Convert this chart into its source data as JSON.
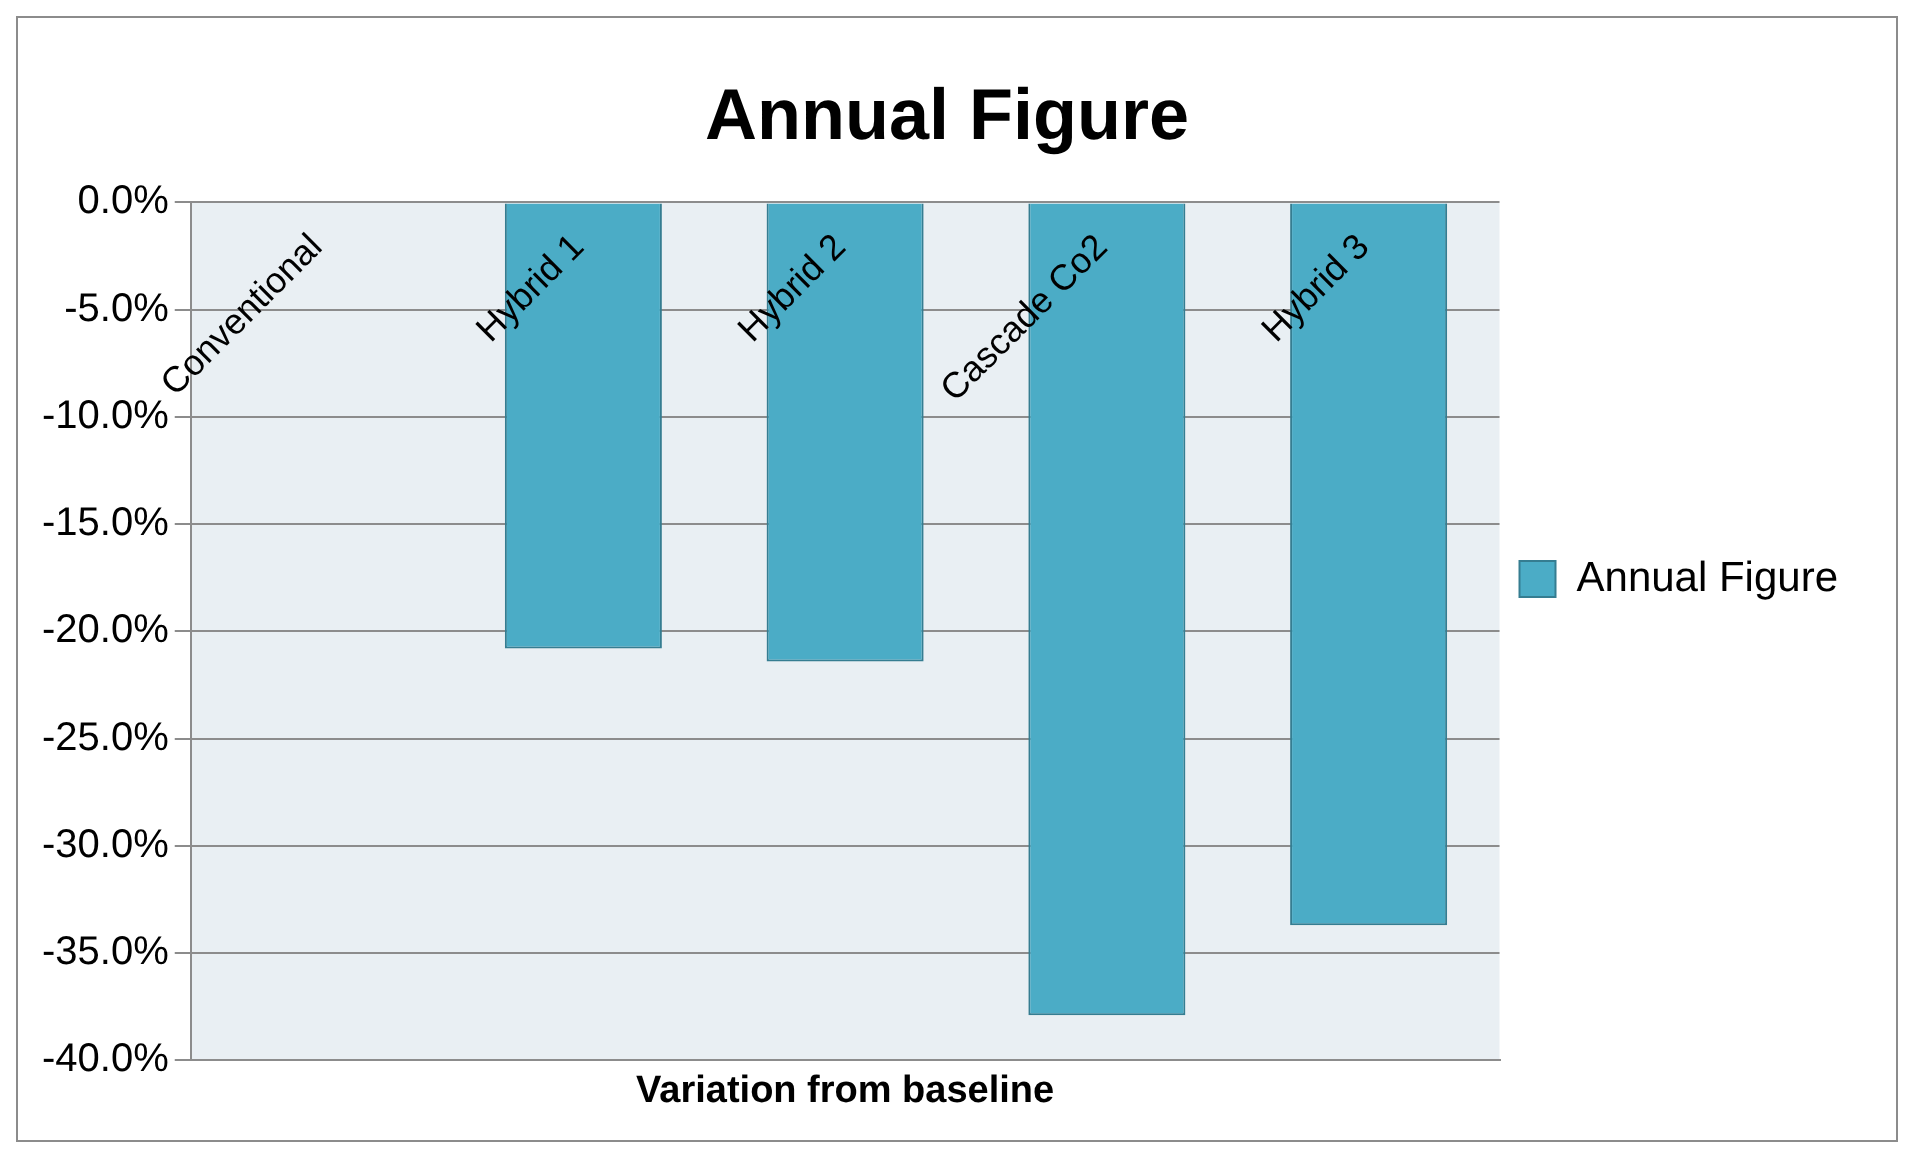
{
  "chart_data": {
    "type": "bar",
    "title": "Annual Figure",
    "xlabel": "Variation from baseline",
    "categories": [
      "Conventional",
      "Hybrid 1",
      "Hybrid 2",
      "Cascade Co2",
      "Hybrid 3"
    ],
    "series": [
      {
        "name": "Annual Figure",
        "color": "#4bacc6",
        "values": [
          0,
          -20.8,
          -21.4,
          -37.9,
          -33.7
        ]
      }
    ],
    "ylim": [
      -40,
      0
    ],
    "yticks": [
      {
        "value": 0,
        "label": "0.0%"
      },
      {
        "value": -5,
        "label": "-5.0%"
      },
      {
        "value": -10,
        "label": "-10.0%"
      },
      {
        "value": -15,
        "label": "-15.0%"
      },
      {
        "value": -20,
        "label": "-20.0%"
      },
      {
        "value": -25,
        "label": "-25.0%"
      },
      {
        "value": -30,
        "label": "-30.0%"
      },
      {
        "value": -35,
        "label": "-35.0%"
      },
      {
        "value": -40,
        "label": "-40.0%"
      }
    ],
    "grid": "y",
    "legend": "right"
  }
}
